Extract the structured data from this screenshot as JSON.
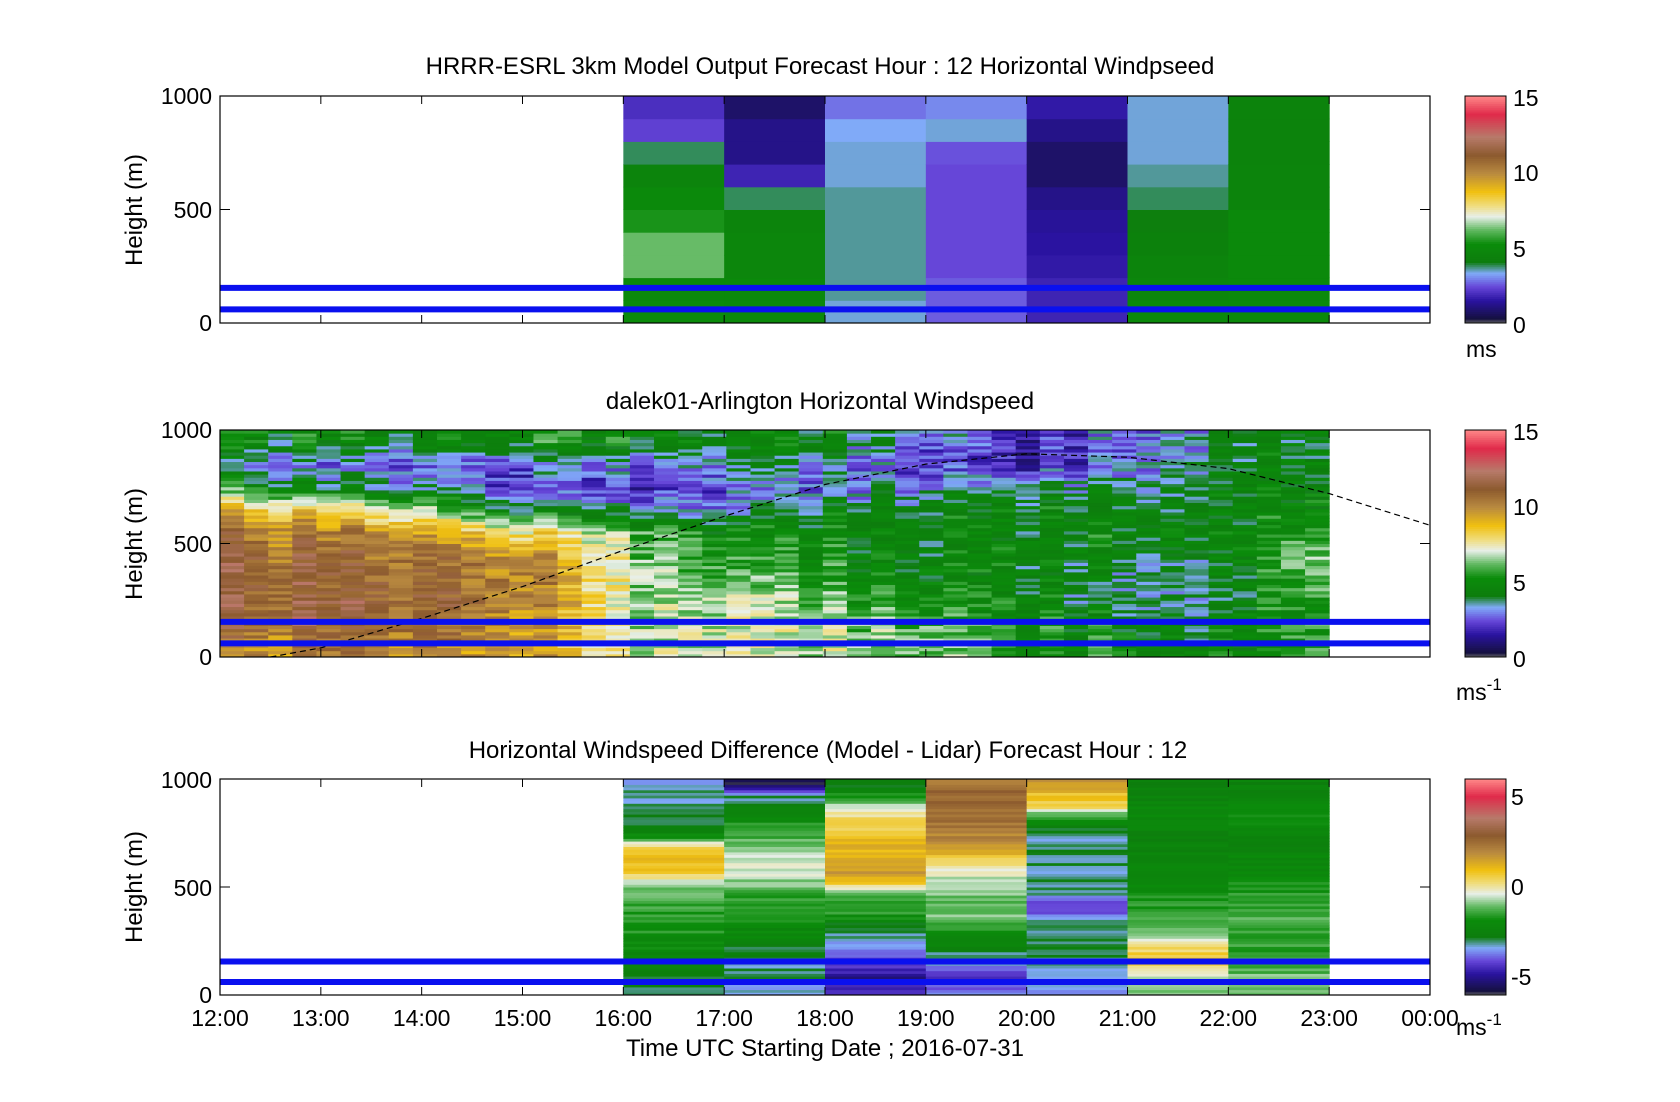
{
  "panels": [
    {
      "title": "HRRR-ESRL 3km Model Output   Forecast Hour : 12 Horizontal Windpseed",
      "ylabel": "Height (m)",
      "yticks": [
        "0",
        "500",
        "1000"
      ],
      "colorbar": {
        "ticks": [
          "0",
          "5",
          "10",
          "15"
        ],
        "unit": "ms",
        "unit_sup": ""
      }
    },
    {
      "title": "dalek01-Arlington  Horizontal Windspeed",
      "ylabel": "Height (m)",
      "yticks": [
        "0",
        "500",
        "1000"
      ],
      "colorbar": {
        "ticks": [
          "0",
          "5",
          "10",
          "15"
        ],
        "unit": "ms",
        "unit_sup": "-1"
      }
    },
    {
      "title": "Horizontal Windspeed Difference (Model - Lidar) Forecast Hour : 12",
      "ylabel": "Height (m)",
      "yticks": [
        "0",
        "500",
        "1000"
      ],
      "colorbar": {
        "ticks": [
          "-5",
          "0",
          "5"
        ],
        "unit": "ms",
        "unit_sup": "-1"
      }
    }
  ],
  "xaxis": {
    "ticks": [
      "12:00",
      "13:00",
      "14:00",
      "15:00",
      "16:00",
      "17:00",
      "18:00",
      "19:00",
      "20:00",
      "21:00",
      "22:00",
      "23:00",
      "00:00"
    ],
    "label": "Time UTC  Starting Date ; 2016-07-31"
  },
  "chart_data": [
    {
      "type": "heatmap",
      "title": "HRRR-ESRL 3km Model Output   Forecast Hour : 12 Horizontal Windpseed",
      "xlabel": "",
      "ylabel": "Height (m)",
      "x_range_hours_utc": [
        12,
        24
      ],
      "ylim": [
        0,
        1000
      ],
      "clim": [
        0,
        15
      ],
      "colorbar_unit": "ms",
      "x_bin_starts": [
        "16:00",
        "17:00",
        "18:00",
        "19:00",
        "20:00",
        "21:00",
        "22:00"
      ],
      "heights_m": [
        50,
        150,
        250,
        350,
        450,
        550,
        650,
        750,
        850,
        950
      ],
      "values_by_column_low_to_high": [
        [
          5.2,
          5.0,
          6.2,
          6.2,
          5.4,
          5.0,
          4.6,
          3.8,
          2.3,
          2.0
        ],
        [
          5.0,
          5.0,
          4.8,
          4.8,
          4.6,
          3.8,
          1.8,
          1.2,
          1.2,
          0.8
        ],
        [
          3.4,
          3.6,
          3.6,
          3.6,
          3.6,
          3.6,
          3.4,
          3.4,
          3.3,
          2.8
        ],
        [
          2.6,
          2.6,
          2.4,
          2.4,
          2.4,
          2.4,
          2.4,
          2.5,
          3.4,
          3.0
        ],
        [
          1.8,
          1.8,
          1.6,
          1.5,
          1.4,
          1.2,
          0.8,
          0.8,
          1.2,
          1.6
        ],
        [
          5.0,
          4.8,
          4.6,
          4.4,
          4.2,
          3.8,
          3.6,
          3.4,
          3.4,
          3.4
        ],
        [
          5.0,
          5.0,
          5.0,
          5.0,
          5.0,
          4.6,
          4.6,
          4.5,
          4.5,
          4.5
        ]
      ],
      "reference_lines_m": [
        60,
        155
      ],
      "reference_line_color": "#0a10ef"
    },
    {
      "type": "heatmap",
      "title": "dalek01-Arlington  Horizontal Windspeed",
      "xlabel": "",
      "ylabel": "Height (m)",
      "x_range_hours_utc": [
        12,
        24
      ],
      "ylim": [
        0,
        1000
      ],
      "clim": [
        0,
        15
      ],
      "colorbar_unit": "ms-1",
      "data_time_range": [
        "12:00",
        "23:00"
      ],
      "profile_time_hours_utc": [
        12,
        13,
        14,
        15,
        16,
        17,
        18,
        19,
        20,
        21,
        22,
        23
      ],
      "profile_heights_m": [
        50,
        150,
        250,
        350,
        450,
        550,
        650,
        750,
        850,
        950
      ],
      "profile_windspeed_ms": [
        [
          9.8,
          10.8,
          11.0,
          11.0,
          11.0,
          10.6,
          9.0,
          5.4,
          3.5,
          5.0
        ],
        [
          10.2,
          11.2,
          11.0,
          11.0,
          10.6,
          10.0,
          8.0,
          4.0,
          2.6,
          4.6
        ],
        [
          9.8,
          11.0,
          10.9,
          10.8,
          10.4,
          9.2,
          6.5,
          3.5,
          2.4,
          4.5
        ],
        [
          9.6,
          10.0,
          10.4,
          10.4,
          10.0,
          8.0,
          4.2,
          2.4,
          2.8,
          5.0
        ],
        [
          6.8,
          6.8,
          6.8,
          7.0,
          6.8,
          6.4,
          3.2,
          1.8,
          3.0,
          4.8
        ],
        [
          7.0,
          7.0,
          6.8,
          6.0,
          5.4,
          5.0,
          3.0,
          2.6,
          3.6,
          4.6
        ],
        [
          6.6,
          6.6,
          6.0,
          5.2,
          5.0,
          4.8,
          4.2,
          2.8,
          3.4,
          4.5
        ],
        [
          6.4,
          6.2,
          5.2,
          4.8,
          4.6,
          4.6,
          4.4,
          3.6,
          2.2,
          3.2
        ],
        [
          5.2,
          5.0,
          4.6,
          4.6,
          4.6,
          4.6,
          4.4,
          3.6,
          1.4,
          1.6
        ],
        [
          4.8,
          4.6,
          3.6,
          3.4,
          4.4,
          4.6,
          4.4,
          3.8,
          3.0,
          2.6
        ],
        [
          5.0,
          4.8,
          4.4,
          4.4,
          4.6,
          4.8,
          4.6,
          4.6,
          4.4,
          4.2
        ],
        [
          5.6,
          5.6,
          5.8,
          6.4,
          6.6,
          5.8,
          5.0,
          4.8,
          4.5,
          4.2
        ]
      ],
      "boundary_layer_line_m": [
        [
          "12:30",
          0
        ],
        [
          "13:00",
          40
        ],
        [
          "14:00",
          170
        ],
        [
          "15:00",
          310
        ],
        [
          "16:00",
          470
        ],
        [
          "17:00",
          620
        ],
        [
          "18:00",
          760
        ],
        [
          "19:00",
          850
        ],
        [
          "20:00",
          895
        ],
        [
          "21:00",
          880
        ],
        [
          "22:00",
          830
        ],
        [
          "23:00",
          720
        ],
        [
          "00:00",
          580
        ]
      ],
      "boundary_layer_line_style": "dashed",
      "reference_lines_m": [
        60,
        155
      ],
      "reference_line_color": "#0a10ef"
    },
    {
      "type": "heatmap",
      "title": "Horizontal Windspeed Difference (Model - Lidar) Forecast Hour : 12",
      "xlabel": "Time UTC  Starting Date ; 2016-07-31",
      "ylabel": "Height (m)",
      "x_range_hours_utc": [
        12,
        24
      ],
      "ylim": [
        0,
        1000
      ],
      "clim": [
        -6,
        6
      ],
      "colorbar_unit": "ms-1",
      "x_bin_starts": [
        "16:00",
        "17:00",
        "18:00",
        "19:00",
        "20:00",
        "21:00",
        "22:00"
      ],
      "heights_m": [
        25,
        75,
        125,
        175,
        225,
        275,
        325,
        375,
        425,
        475,
        525,
        575,
        625,
        675,
        725,
        775,
        825,
        875,
        925,
        975
      ],
      "values_by_column_low_to_high": [
        [
          -3.0,
          -2.6,
          -2.4,
          -2.2,
          -2.0,
          -1.8,
          -1.6,
          -1.6,
          -1.4,
          -1.2,
          -0.6,
          0.8,
          1.2,
          0.8,
          -1.4,
          -2.6,
          -3.0,
          -3.2,
          -3.0,
          -3.6
        ],
        [
          -3.2,
          -3.0,
          -3.0,
          -3.0,
          -2.6,
          -2.2,
          -2.0,
          -1.8,
          -1.6,
          -1.4,
          -0.8,
          -0.4,
          -0.6,
          -0.8,
          -1.2,
          -1.6,
          -2.0,
          -2.6,
          -3.2,
          -5.6
        ],
        [
          -4.6,
          -5.0,
          -4.4,
          -4.0,
          -3.6,
          -3.0,
          -2.6,
          -1.6,
          -1.4,
          -1.0,
          1.0,
          1.6,
          1.4,
          1.2,
          1.0,
          0.6,
          0.2,
          -0.6,
          -1.8,
          -2.6
        ],
        [
          -3.6,
          -4.6,
          -3.8,
          -3.2,
          -2.6,
          -1.8,
          -1.4,
          -1.0,
          -1.2,
          -1.0,
          -0.8,
          -0.2,
          0.6,
          1.6,
          2.0,
          2.2,
          2.4,
          2.6,
          2.6,
          2.4
        ],
        [
          -3.4,
          -3.2,
          -3.2,
          -3.0,
          -2.8,
          -2.8,
          -3.0,
          -3.8,
          -4.0,
          -3.2,
          -3.0,
          -3.0,
          -3.0,
          -3.0,
          -3.2,
          -2.8,
          -1.6,
          0.6,
          0.8,
          1.6
        ],
        [
          -0.8,
          -0.8,
          0.2,
          0.8,
          0.2,
          -0.6,
          -1.2,
          -1.4,
          -1.6,
          -1.8,
          -2.0,
          -2.2,
          -2.4,
          -2.4,
          -2.4,
          -2.2,
          -2.0,
          -2.2,
          -2.4,
          -2.6
        ],
        [
          -1.0,
          -1.0,
          -1.2,
          -1.4,
          -1.4,
          -1.4,
          -1.2,
          -1.4,
          -1.6,
          -1.6,
          -1.8,
          -2.0,
          -2.2,
          -2.2,
          -2.2,
          -2.0,
          -2.0,
          -2.2,
          -2.2,
          -2.4
        ]
      ],
      "reference_lines_m": [
        60,
        155
      ],
      "reference_line_color": "#0a10ef"
    }
  ]
}
